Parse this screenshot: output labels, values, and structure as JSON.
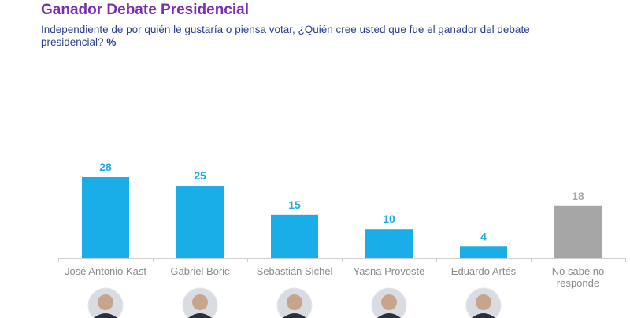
{
  "title": "Ganador Debate Presidencial",
  "subtitle": "Independiente de por quién le gustaría o piensa votar, ¿Quién cree usted que fue el ganador del debate presidencial?",
  "unit_label": "%",
  "colors": {
    "title": "#7a2fb0",
    "subtitle": "#2a3f8f",
    "candidate_bar": "#1aaee8",
    "no_answer_bar": "#a6a6a6",
    "axis": "#cfcfcf"
  },
  "chart_data": {
    "type": "bar",
    "categories": [
      "José Antonio Kast",
      "Gabriel Boric",
      "Sebastián Sichel",
      "Yasna Provoste",
      "Eduardo Artés",
      "No sabe no responde"
    ],
    "category_lines": [
      [
        "José Antonio Kast"
      ],
      [
        "Gabriel Boric"
      ],
      [
        "Sebastián Sichel"
      ],
      [
        "Yasna Provoste"
      ],
      [
        "Eduardo Artés"
      ],
      [
        "No sabe no",
        "responde"
      ]
    ],
    "values": [
      28,
      25,
      15,
      10,
      4,
      18
    ],
    "value_labels": [
      "28",
      "25",
      "15",
      "10",
      "4",
      "18"
    ],
    "bar_colors": [
      "#1aaee8",
      "#1aaee8",
      "#1aaee8",
      "#1aaee8",
      "#1aaee8",
      "#a6a6a6"
    ],
    "label_colors": [
      "#1aaee8",
      "#1aaee8",
      "#1aaee8",
      "#1aaee8",
      "#1aaee8",
      "#a6a6a6"
    ],
    "has_photo": [
      true,
      true,
      true,
      true,
      true,
      false
    ],
    "ylim": [
      0,
      28
    ],
    "grid": false,
    "legend": "none"
  }
}
